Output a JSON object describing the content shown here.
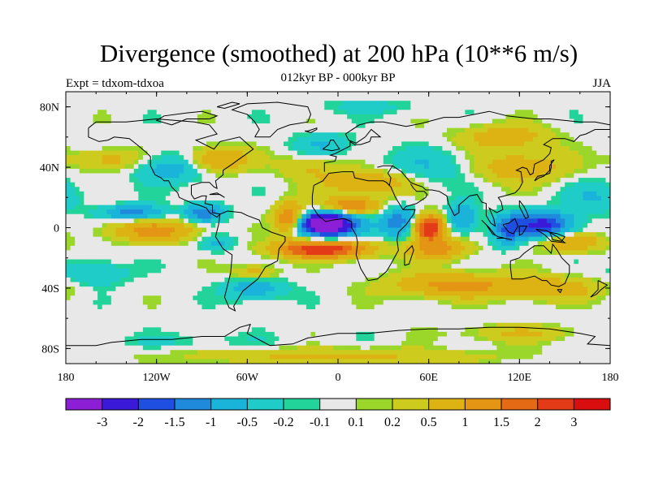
{
  "title": "Divergence (smoothed) at 200 hPa (10**6 m/s)",
  "subtitle": "012kyr BP - 000kyr BP",
  "expt_label": "Expt = tdxom-tdxoa",
  "season": "JJA",
  "axes": {
    "x_ticks": [
      {
        "value": -180,
        "label": "180"
      },
      {
        "value": -120,
        "label": "120W"
      },
      {
        "value": -60,
        "label": "60W"
      },
      {
        "value": 0,
        "label": "0"
      },
      {
        "value": 60,
        "label": "60E"
      },
      {
        "value": 120,
        "label": "120E"
      },
      {
        "value": 180,
        "label": "180"
      }
    ],
    "y_ticks": [
      {
        "value": 80,
        "label": "80N"
      },
      {
        "value": 40,
        "label": "40N"
      },
      {
        "value": 0,
        "label": "0"
      },
      {
        "value": -40,
        "label": "40S"
      },
      {
        "value": -80,
        "label": "80S"
      }
    ],
    "lon_range": [
      -180,
      180
    ],
    "lat_range": [
      -90,
      90
    ]
  },
  "colorbar": {
    "colors": [
      "#8c1ed6",
      "#3a19d9",
      "#1f4fe0",
      "#1f89dc",
      "#1ab3da",
      "#1fccc8",
      "#22d39a",
      "#e8e8e8",
      "#9bd62a",
      "#cdcc1e",
      "#dcb313",
      "#e39513",
      "#e56a16",
      "#e33b18",
      "#d90e0e"
    ],
    "labels": [
      "-3",
      "-2",
      "-1.5",
      "-1",
      "-0.5",
      "-0.2",
      "-0.1",
      "0.1",
      "0.2",
      "0.5",
      "1",
      "1.5",
      "2",
      "3"
    ]
  },
  "field_features": [
    {
      "lon": -8,
      "lat": 3,
      "value": -3.2,
      "rlon": 14,
      "rlat": 6
    },
    {
      "lon": -5,
      "lat": 2,
      "value": -1.8,
      "rlon": 24,
      "rlat": 10
    },
    {
      "lon": -10,
      "lat": -14,
      "value": 2.6,
      "rlon": 30,
      "rlat": 6
    },
    {
      "lon": -32,
      "lat": 6,
      "value": 1.8,
      "rlon": 10,
      "rlat": 10
    },
    {
      "lon": 8,
      "lat": 14,
      "value": 1.6,
      "rlon": 20,
      "rlat": 6
    },
    {
      "lon": 60,
      "lat": 0,
      "value": 2.8,
      "rlon": 10,
      "rlat": 8
    },
    {
      "lon": 66,
      "lat": -14,
      "value": 1.2,
      "rlon": 20,
      "rlat": 7
    },
    {
      "lon": 40,
      "lat": 4,
      "value": -1.2,
      "rlon": 12,
      "rlat": 10
    },
    {
      "lon": 82,
      "lat": 6,
      "value": -1.0,
      "rlon": 10,
      "rlat": 10
    },
    {
      "lon": 135,
      "lat": 2,
      "value": -2.2,
      "rlon": 20,
      "rlat": 8
    },
    {
      "lon": 112,
      "lat": -2,
      "value": -1.2,
      "rlon": 10,
      "rlat": 10
    },
    {
      "lon": 155,
      "lat": -10,
      "value": 1.0,
      "rlon": 20,
      "rlat": 6
    },
    {
      "lon": -122,
      "lat": -2,
      "value": 1.2,
      "rlon": 30,
      "rlat": 7
    },
    {
      "lon": -135,
      "lat": 10,
      "value": -1.2,
      "rlon": 20,
      "rlat": 5
    },
    {
      "lon": -88,
      "lat": 10,
      "value": -1.4,
      "rlon": 12,
      "rlat": 6
    },
    {
      "lon": -80,
      "lat": -10,
      "value": -0.6,
      "rlon": 12,
      "rlat": 6
    },
    {
      "lon": -160,
      "lat": -30,
      "value": -0.6,
      "rlon": 20,
      "rlat": 8
    },
    {
      "lon": -55,
      "lat": -40,
      "value": -0.8,
      "rlon": 20,
      "rlat": 8
    },
    {
      "lon": -55,
      "lat": -30,
      "value": 0.8,
      "rlon": 15,
      "rlat": 5
    },
    {
      "lon": 75,
      "lat": -38,
      "value": 1.2,
      "rlon": 40,
      "rlat": 8
    },
    {
      "lon": 140,
      "lat": -40,
      "value": 0.8,
      "rlon": 35,
      "rlat": 8
    },
    {
      "lon": -110,
      "lat": 40,
      "value": -0.8,
      "rlon": 25,
      "rlat": 10
    },
    {
      "lon": -80,
      "lat": 45,
      "value": 1.2,
      "rlon": 20,
      "rlat": 8
    },
    {
      "lon": -150,
      "lat": 45,
      "value": 0.7,
      "rlon": 25,
      "rlat": 7
    },
    {
      "lon": 20,
      "lat": 30,
      "value": 1.0,
      "rlon": 30,
      "rlat": 8
    },
    {
      "lon": 120,
      "lat": 40,
      "value": 0.9,
      "rlon": 30,
      "rlat": 10
    },
    {
      "lon": 110,
      "lat": 60,
      "value": 0.8,
      "rlon": 30,
      "rlat": 8
    },
    {
      "lon": 60,
      "lat": 40,
      "value": -0.5,
      "rlon": 30,
      "rlat": 12
    },
    {
      "lon": -20,
      "lat": 40,
      "value": 0.5,
      "rlon": 20,
      "rlat": 8
    },
    {
      "lon": -10,
      "lat": 55,
      "value": -0.5,
      "rlon": 20,
      "rlat": 8
    },
    {
      "lon": 20,
      "lat": 80,
      "value": -0.3,
      "rlon": 35,
      "rlat": 5
    },
    {
      "lon": 0,
      "lat": -85,
      "value": 0.6,
      "rlon": 100,
      "rlat": 5
    },
    {
      "lon": -100,
      "lat": -75,
      "value": -0.2,
      "rlon": 60,
      "rlat": 5
    },
    {
      "lon": 120,
      "lat": -70,
      "value": 0.5,
      "rlon": 40,
      "rlat": 6
    },
    {
      "lon": 170,
      "lat": 20,
      "value": -0.5,
      "rlon": 20,
      "rlat": 10
    }
  ]
}
